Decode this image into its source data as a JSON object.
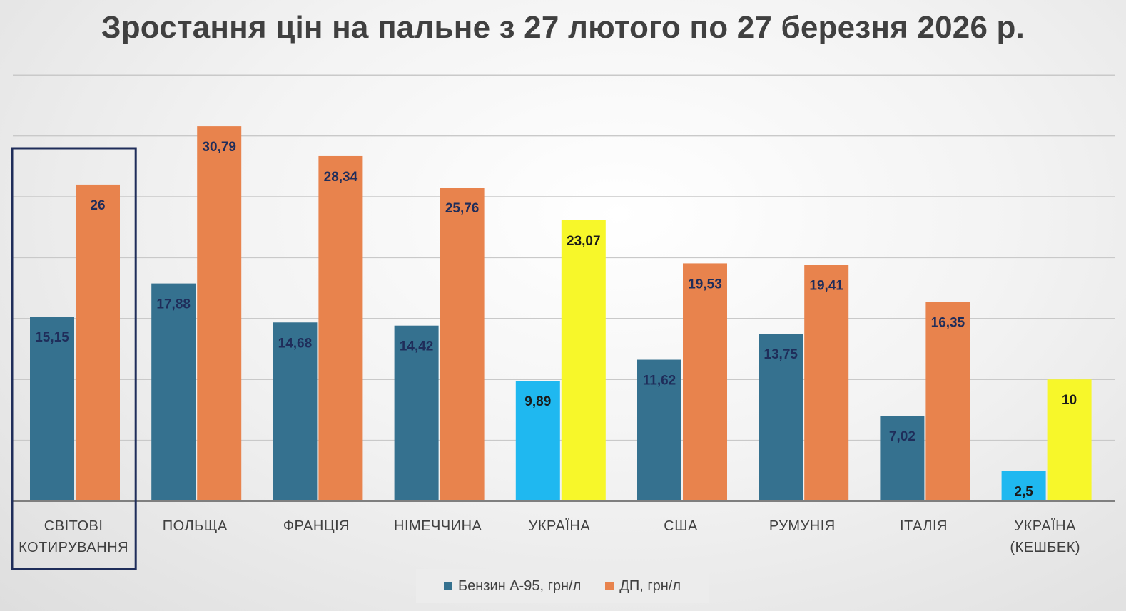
{
  "chart_data": {
    "type": "bar",
    "title": "Зростання цін на пальне з 27 лютого по 27 березня 2026 р.",
    "categories": [
      [
        "СВІТОВІ",
        "КОТИРУВАННЯ"
      ],
      [
        "ПОЛЬЩА"
      ],
      [
        "ФРАНЦІЯ"
      ],
      [
        "НІМЕЧЧИНА"
      ],
      [
        "УКРАЇНА"
      ],
      [
        "США"
      ],
      [
        "РУМУНІЯ"
      ],
      [
        "ІТАЛІЯ"
      ],
      [
        "УКРАЇНА",
        "(КЕШБЕК)"
      ]
    ],
    "series": [
      {
        "name": "Бензин А-95, грн/л",
        "color": "#35718f",
        "values": [
          15.15,
          17.88,
          14.68,
          14.42,
          9.89,
          11.62,
          13.75,
          7.02,
          2.5
        ],
        "labels": [
          "15,15",
          "17,88",
          "14,68",
          "14,42",
          "9,89",
          "11,62",
          "13,75",
          "7,02",
          "2,5"
        ]
      },
      {
        "name": "ДП, грн/л",
        "color": "#e8834d",
        "values": [
          26,
          30.79,
          28.34,
          25.76,
          23.07,
          19.53,
          19.41,
          16.35,
          10
        ],
        "labels": [
          "26",
          "30,79",
          "28,34",
          "25,76",
          "23,07",
          "19,53",
          "19,41",
          "16,35",
          "10"
        ]
      }
    ],
    "highlight_colors": {
      "Бензин А-95, грн/л": "#1fb8f0",
      "ДП, грн/л": "#f7f72a"
    },
    "highlighted_categories": [
      4,
      8
    ],
    "boxed_category": 0,
    "ylim": [
      0,
      35
    ],
    "grid": true,
    "legend_position": "bottom"
  }
}
